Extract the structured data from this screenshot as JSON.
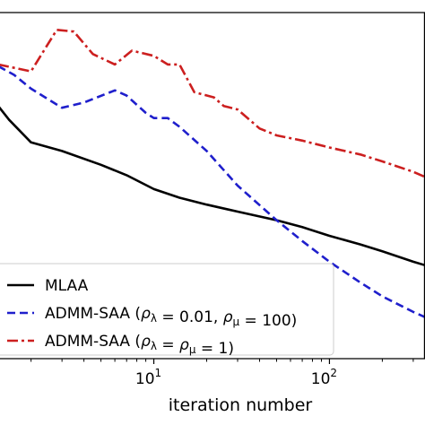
{
  "chart_data": {
    "type": "line",
    "xlabel": "iteration number",
    "ylabel": "",
    "x_scale": "log",
    "xlim": [
      1.3,
      350
    ],
    "ylim": [
      0,
      1
    ],
    "x_ticks": [
      {
        "value": 10,
        "base": "10",
        "exp": "1"
      },
      {
        "value": 100,
        "base": "10",
        "exp": "2"
      }
    ],
    "grid": false,
    "legend_position": "lower-left",
    "series": [
      {
        "name": "MLAA",
        "color": "#000000",
        "dash": "solid",
        "x": [
          1.3,
          1.5,
          2,
          3,
          5,
          7,
          10,
          14,
          20,
          30,
          50,
          70,
          100,
          150,
          200,
          300,
          350
        ],
        "y": [
          0.73,
          0.69,
          0.625,
          0.6,
          0.56,
          0.53,
          0.49,
          0.465,
          0.445,
          0.425,
          0.4,
          0.38,
          0.355,
          0.33,
          0.31,
          0.28,
          0.27
        ]
      },
      {
        "name": "ADMM-SAA (ρ_λ = 0.01, ρ_μ = 100)",
        "color": "#1f1fcc",
        "dash": "dashed",
        "x": [
          1.3,
          1.6,
          2,
          3,
          4,
          6,
          7,
          9,
          10,
          12,
          14,
          20,
          30,
          50,
          70,
          100,
          150,
          200,
          300,
          350
        ],
        "y": [
          0.845,
          0.82,
          0.78,
          0.725,
          0.74,
          0.775,
          0.76,
          0.71,
          0.695,
          0.695,
          0.67,
          0.6,
          0.5,
          0.4,
          0.34,
          0.28,
          0.22,
          0.18,
          0.135,
          0.12
        ]
      },
      {
        "name": "ADMM-SAA (ρ_λ = ρ_μ = 1)",
        "color": "#cc1f1f",
        "dash": "dashdot",
        "x": [
          1.3,
          2,
          2.8,
          3.5,
          4.5,
          6,
          7.5,
          10,
          12,
          14,
          17,
          22,
          25,
          30,
          40,
          50,
          70,
          100,
          150,
          200,
          300,
          350
        ],
        "y": [
          0.85,
          0.83,
          0.95,
          0.945,
          0.88,
          0.85,
          0.89,
          0.875,
          0.85,
          0.85,
          0.77,
          0.755,
          0.73,
          0.72,
          0.665,
          0.645,
          0.63,
          0.61,
          0.59,
          0.57,
          0.54,
          0.525
        ]
      }
    ]
  }
}
